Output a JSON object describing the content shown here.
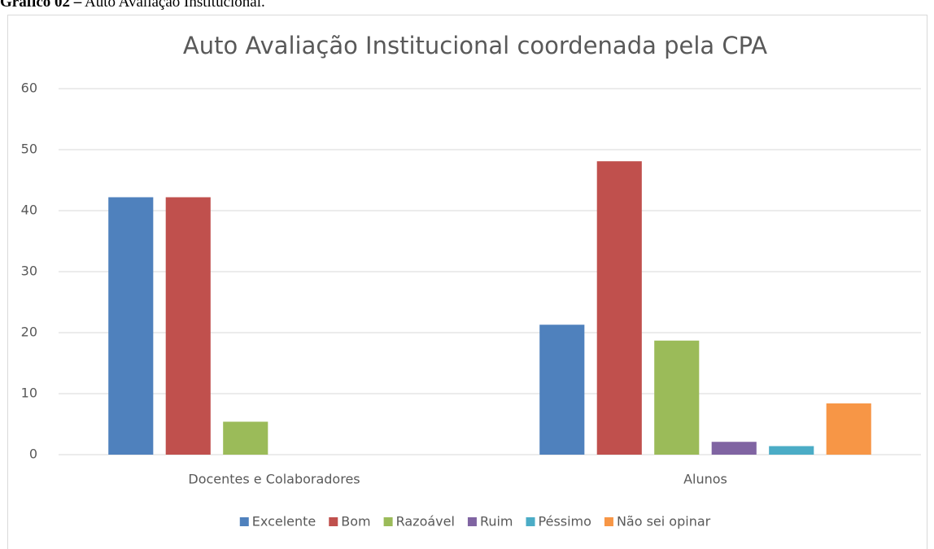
{
  "caption": {
    "label": "Gráfico 02 –",
    "text": "Auto Avaliação Institucional."
  },
  "chart_data": {
    "type": "bar",
    "title": "Auto Avaliação Institucional coordenada pela CPA",
    "categories": [
      "Docentes e Colaboradores",
      "Alunos"
    ],
    "series": [
      {
        "name": "Excelente",
        "color": "#4f81bd",
        "values": [
          42.2,
          21.3
        ]
      },
      {
        "name": "Bom",
        "color": "#c0504d",
        "values": [
          42.2,
          48.1
        ]
      },
      {
        "name": "Razoável",
        "color": "#9bbb59",
        "values": [
          5.4,
          18.7
        ]
      },
      {
        "name": "Ruim",
        "color": "#8064a2",
        "values": [
          0,
          2.1
        ]
      },
      {
        "name": "Péssimo",
        "color": "#4bacc6",
        "values": [
          0,
          1.4
        ]
      },
      {
        "name": "Não sei opinar",
        "color": "#f79646",
        "values": [
          0,
          8.4
        ]
      }
    ],
    "ylim": [
      0,
      60
    ],
    "yticks": [
      0,
      10,
      20,
      30,
      40,
      50,
      60
    ],
    "grid": true,
    "legend": "bottom"
  }
}
